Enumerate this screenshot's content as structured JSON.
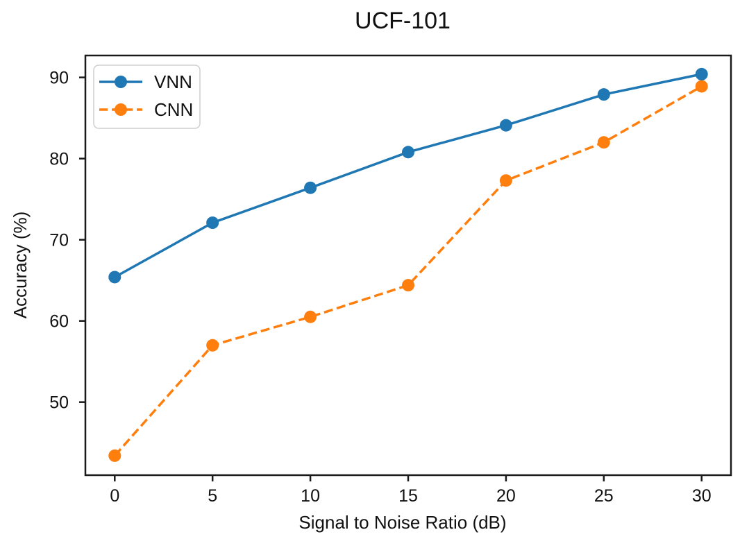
{
  "title": "UCF-101",
  "chart_data": {
    "type": "line",
    "title": "UCF-101",
    "xlabel": "Signal to Noise Ratio (dB)",
    "ylabel": "Accuracy (%)",
    "x": [
      0,
      5,
      10,
      15,
      20,
      25,
      30
    ],
    "series": [
      {
        "name": "VNN",
        "values": [
          65.4,
          72.1,
          76.4,
          80.8,
          84.1,
          87.9,
          90.4
        ],
        "color": "#1f77b4",
        "line_style": "solid",
        "marker": "circle"
      },
      {
        "name": "CNN",
        "values": [
          43.4,
          57.0,
          60.5,
          64.4,
          77.3,
          82.0,
          88.9
        ],
        "color": "#ff7f0e",
        "line_style": "dashed",
        "marker": "circle"
      }
    ],
    "xticks": [
      0,
      5,
      10,
      15,
      20,
      25,
      30
    ],
    "yticks": [
      50,
      60,
      70,
      80,
      90
    ],
    "xlim": [
      -1.5,
      31.5
    ],
    "ylim": [
      41.0,
      92.7
    ],
    "grid": false,
    "legend_position": "upper left",
    "frame_color": "#1a1a1a",
    "legend_border_color": "#cfcfcf",
    "background": "#ffffff"
  }
}
